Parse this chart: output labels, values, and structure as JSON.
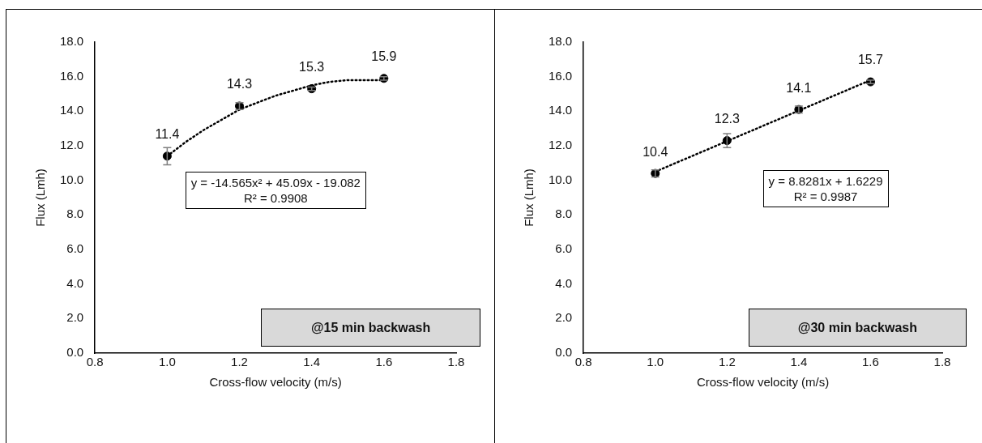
{
  "chart_data": [
    {
      "type": "scatter",
      "xlabel": "Cross-flow velocity (m/s)",
      "ylabel": "Flux (Lmh)",
      "x": [
        1.0,
        1.2,
        1.4,
        1.6
      ],
      "xlim": [
        0.8,
        1.8
      ],
      "xticks": [
        0.8,
        {
          "value": 1,
          "label": "1.0"
        },
        1.2,
        1.4,
        1.6,
        1.8
      ],
      "ylim": [
        0,
        18
      ],
      "yticks": [
        {
          "value": 0,
          "label": "0.0"
        },
        {
          "value": 2,
          "label": "2.0"
        },
        {
          "value": 4,
          "label": "4.0"
        },
        {
          "value": 6,
          "label": "6.0"
        },
        {
          "value": 8,
          "label": "8.0"
        },
        {
          "value": 10,
          "label": "10.0"
        },
        {
          "value": 12,
          "label": "12.0"
        },
        {
          "value": 14,
          "label": "14.0"
        },
        {
          "value": 16,
          "label": "16.0"
        },
        {
          "value": 18,
          "label": "18.0"
        }
      ],
      "grid": false,
      "legend": false,
      "series": [
        {
          "type": "scatter",
          "color": "#000000",
          "marker": "circle",
          "data_labels": true,
          "values": [
            11.4,
            14.3,
            15.3,
            15.9
          ],
          "errors": [
            0.5,
            0.2,
            0.1,
            0.1
          ]
        },
        {
          "type": "line",
          "color": "#000000",
          "marker": "none",
          "line_style": "dotted",
          "x": [
            1.0,
            1.05,
            1.1,
            1.15,
            1.2,
            1.25,
            1.3,
            1.35,
            1.4,
            1.45,
            1.5,
            1.55,
            1.6
          ],
          "values": [
            11.4,
            12.2,
            12.9,
            13.5,
            14.1,
            14.5,
            14.9,
            15.2,
            15.5,
            15.7,
            15.8,
            15.8,
            15.8
          ]
        }
      ],
      "annotations": [
        "y = -14.565x² + 45.09x - 19.082",
        "R² = 0.9908",
        "@15 min backwash"
      ]
    },
    {
      "type": "scatter",
      "xlabel": "Cross-flow velocity (m/s)",
      "ylabel": "Flux (Lmh)",
      "x": [
        1.0,
        1.2,
        1.4,
        1.6
      ],
      "xlim": [
        0.8,
        1.8
      ],
      "xticks": [
        0.8,
        {
          "value": 1,
          "label": "1.0"
        },
        1.2,
        1.4,
        1.6,
        1.8
      ],
      "ylim": [
        0,
        18
      ],
      "yticks": [
        {
          "value": 0,
          "label": "0.0"
        },
        {
          "value": 2,
          "label": "2.0"
        },
        {
          "value": 4,
          "label": "4.0"
        },
        {
          "value": 6,
          "label": "6.0"
        },
        {
          "value": 8,
          "label": "8.0"
        },
        {
          "value": 10,
          "label": "10.0"
        },
        {
          "value": 12,
          "label": "12.0"
        },
        {
          "value": 14,
          "label": "14.0"
        },
        {
          "value": 16,
          "label": "16.0"
        },
        {
          "value": 18,
          "label": "18.0"
        }
      ],
      "grid": false,
      "legend": false,
      "series": [
        {
          "type": "scatter",
          "color": "#000000",
          "marker": "circle",
          "data_labels": true,
          "values": [
            10.4,
            12.3,
            14.1,
            15.7
          ],
          "errors": [
            0.2,
            0.4,
            0.2,
            0.1
          ]
        },
        {
          "type": "line",
          "color": "#000000",
          "marker": "none",
          "line_style": "dotted",
          "x": [
            1.0,
            1.6
          ],
          "values": [
            10.5,
            15.8
          ]
        }
      ],
      "annotations": [
        "y = 8.8281x + 1.6229",
        "R² = 0.9987",
        "@30 min backwash"
      ]
    }
  ]
}
